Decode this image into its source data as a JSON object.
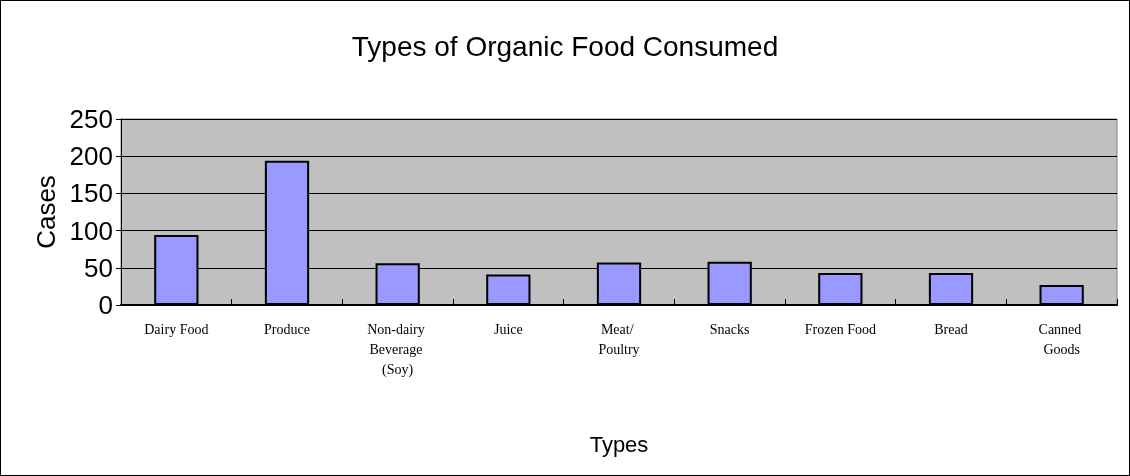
{
  "chart_data": {
    "type": "bar",
    "title": "Types of Organic Food Consumed",
    "xlabel": "Types",
    "ylabel": "Cases",
    "categories": [
      "Dairy Food",
      "Produce",
      "Non-dairy Beverage (Soy)",
      "Juice",
      "Meat/ Poultry",
      "Snacks",
      "Frozen Food",
      "Bread",
      "Canned Goods"
    ],
    "values": [
      94,
      194,
      56,
      41,
      57,
      58,
      43,
      43,
      27
    ],
    "color": "#9999ff",
    "ylim": [
      0,
      250
    ],
    "yticks": [
      0,
      50,
      100,
      150,
      200,
      250
    ],
    "grid": "y"
  }
}
